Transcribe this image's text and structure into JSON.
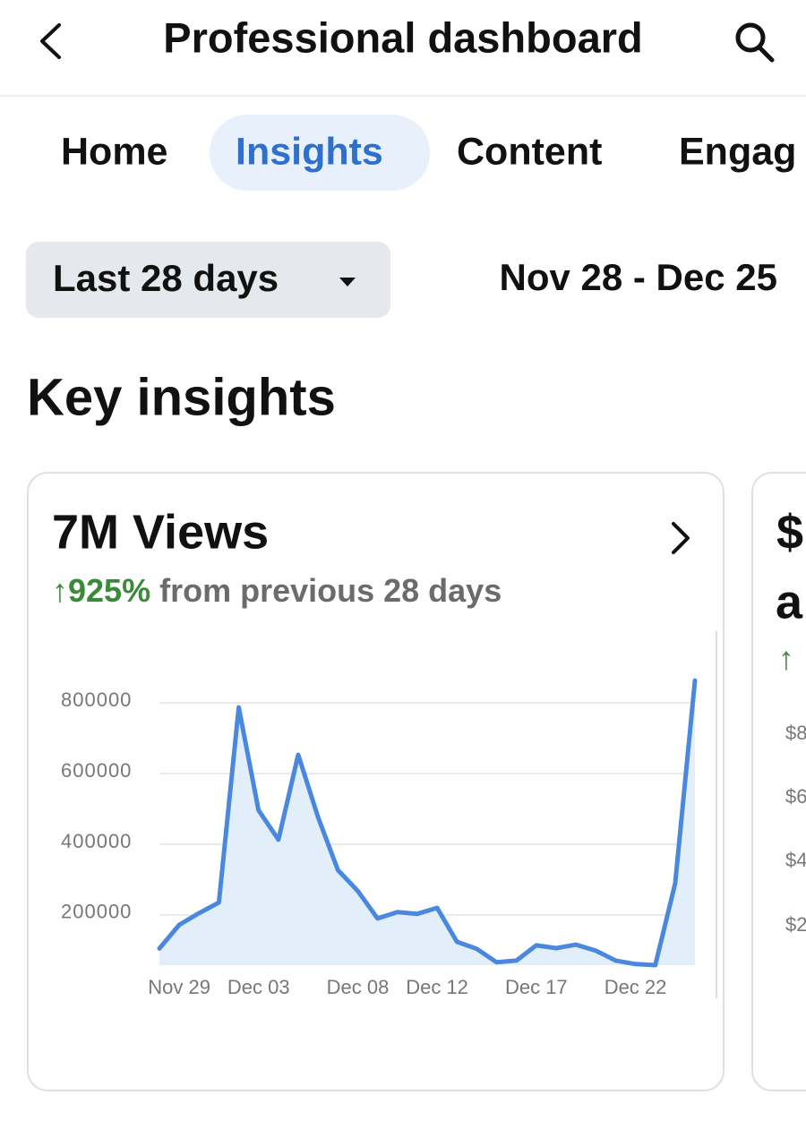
{
  "header": {
    "title": "Professional dashboard"
  },
  "tabs": [
    "Home",
    "Insights",
    "Content",
    "Engag"
  ],
  "filter": {
    "range": "Last 28 days",
    "dates": "Nov 28 - Dec 25"
  },
  "section_title": "Key insights",
  "card": {
    "title": "7M Views",
    "change": "↑925%",
    "change_note": "from previous 28 days"
  },
  "chart_data": {
    "type": "area",
    "categories": [
      null,
      "Nov 29",
      null,
      null,
      null,
      "Dec 03",
      null,
      null,
      null,
      null,
      "Dec 08",
      null,
      null,
      null,
      "Dec 12",
      null,
      null,
      null,
      null,
      "Dec 17",
      null,
      null,
      null,
      null,
      "Dec 22",
      null,
      null,
      null
    ],
    "values": [
      105000,
      172000,
      205000,
      235000,
      787000,
      496000,
      413000,
      653000,
      476000,
      327000,
      268000,
      190000,
      208000,
      203000,
      220000,
      124000,
      104000,
      66000,
      71000,
      114000,
      106000,
      116000,
      99000,
      71000,
      61000,
      58000,
      289000,
      863000
    ],
    "color": "#4a88e0",
    "fill": "#e3eefb",
    "ylim": [
      58000,
      1000000
    ],
    "yticks": [
      200000,
      400000,
      600000,
      800000
    ],
    "grid": true
  },
  "next_card": {
    "title_lines": [
      "$",
      "a"
    ],
    "change": "↑",
    "tick_labels": [
      "$8",
      "$6",
      "$4",
      "$2"
    ]
  }
}
